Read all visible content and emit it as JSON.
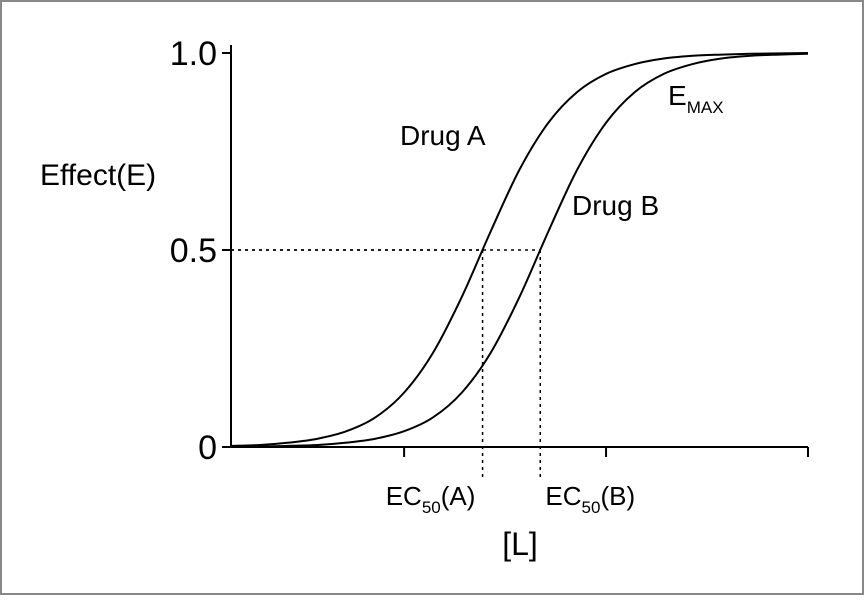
{
  "chart_data": {
    "type": "line",
    "ylabel": "Effect(E)",
    "xlabel": "[L]",
    "x": [
      0,
      0.5,
      1,
      1.5,
      2,
      2.5,
      3,
      3.5,
      4,
      4.5,
      5,
      5.5,
      6,
      6.5,
      7,
      7.5,
      8,
      8.5,
      9,
      9.5,
      10
    ],
    "series": [
      {
        "name": "Drug A",
        "color": "#000000",
        "values": [
          0.003,
          0.005,
          0.011,
          0.021,
          0.04,
          0.075,
          0.138,
          0.239,
          0.381,
          0.547,
          0.704,
          0.823,
          0.901,
          0.947,
          0.972,
          0.986,
          0.993,
          0.996,
          0.998,
          0.999,
          1.0
        ]
      },
      {
        "name": "Drug B",
        "color": "#000000",
        "values": [
          0.001,
          0.001,
          0.003,
          0.005,
          0.011,
          0.021,
          0.04,
          0.075,
          0.138,
          0.239,
          0.381,
          0.547,
          0.704,
          0.823,
          0.901,
          0.947,
          0.972,
          0.986,
          0.993,
          0.996,
          0.998
        ]
      }
    ],
    "emax_label": {
      "base": "E",
      "sub": "MAX"
    },
    "ec50": [
      {
        "x": 4.36,
        "effect": 0.5,
        "label": {
          "base": "EC",
          "sub": "50",
          "suffix": "(A)"
        }
      },
      {
        "x": 5.36,
        "effect": 0.5,
        "label": {
          "base": "EC",
          "sub": "50",
          "suffix": "(B)"
        }
      }
    ],
    "xlim": [
      0,
      10
    ],
    "xticks": [
      3,
      6.5,
      10
    ],
    "ylim": [
      0,
      1
    ],
    "yticks": [
      0,
      0.5,
      {
        "value": 1,
        "label": "1.0"
      }
    ]
  }
}
